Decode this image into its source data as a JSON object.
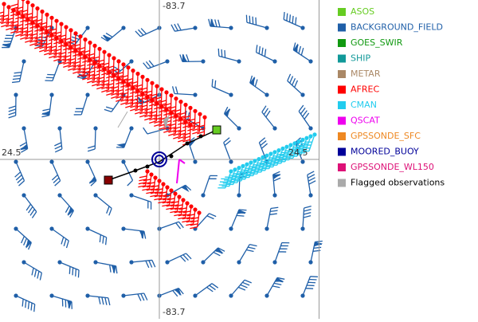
{
  "axes": {
    "top": "-83.7",
    "bottom": "-83.7",
    "left": "24.5",
    "right": "24.5"
  },
  "legend": [
    {
      "label": "ASOS",
      "color": "#66cc22"
    },
    {
      "label": "BACKGROUND_FIELD",
      "color": "#1f5fa8"
    },
    {
      "label": "GOES_SWIR",
      "color": "#119911"
    },
    {
      "label": "SHIP",
      "color": "#119999"
    },
    {
      "label": "METAR",
      "color": "#aa8866"
    },
    {
      "label": "AFREC",
      "color": "#ff0000"
    },
    {
      "label": "CMAN",
      "color": "#22ccee"
    },
    {
      "label": "QSCAT",
      "color": "#ee00ee"
    },
    {
      "label": "GPSSONDE_SFC",
      "color": "#ee8822"
    },
    {
      "label": "MOORED_BUOY",
      "color": "#000099"
    },
    {
      "label": "GPSSONDE_WL150",
      "color": "#dd1177"
    },
    {
      "label": "Flagged observations",
      "color": "#aaaaaa",
      "text_color": "#000000"
    }
  ]
}
